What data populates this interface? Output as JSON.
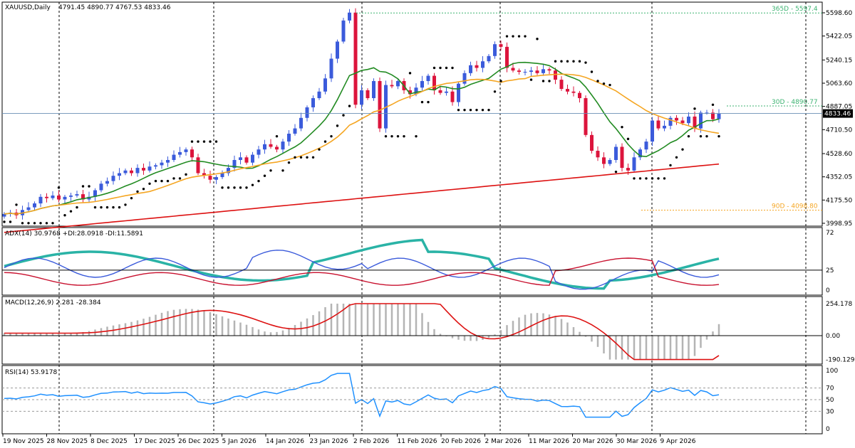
{
  "header": {
    "symbol": "XAUUSD,Daily",
    "ohlc": "4791.45 4890.77 4767.53 4833.46"
  },
  "price_panel": {
    "y_ticks": [
      "5598.60",
      "5422.05",
      "5240.15",
      "5063.60",
      "4887.05",
      "4710.50",
      "4528.60",
      "4352.05",
      "4175.50",
      "3998.95"
    ],
    "last_price": "4833.46",
    "levels": [
      {
        "label": "365D - 5597.4",
        "value": 5597.4,
        "color": "#3cb371"
      },
      {
        "label": "30D - 4890.77",
        "value": 4890.77,
        "color": "#3cb371"
      },
      {
        "label": "90D - 4098.80",
        "value": 4098.8,
        "color": "#f5a623"
      }
    ]
  },
  "adx_panel": {
    "header": "ADX(14) 30.9768 +DI:28.0918 -DI:11.5891",
    "y_ticks": [
      "72",
      "25",
      "0"
    ],
    "level": 25
  },
  "macd_panel": {
    "header": "MACD(12,26,9) 2.281 -28.384",
    "y_ticks": [
      "254.178",
      "0.00",
      "-190.129"
    ]
  },
  "rsi_panel": {
    "header": "RSI(14) 53.9178",
    "y_ticks": [
      "100",
      "70",
      "50",
      "30",
      "0"
    ]
  },
  "x_axis": {
    "labels": [
      "19 Nov 2025",
      "28 Nov 2025",
      "8 Dec 2025",
      "17 Dec 2025",
      "26 Dec 2025",
      "5 Jan 2026",
      "14 Jan 2026",
      "23 Jan 2026",
      "2 Feb 2026",
      "11 Feb 2026",
      "20 Feb 2026",
      "2 Mar 2026",
      "11 Mar 2026",
      "20 Mar 2026",
      "30 Mar 2026",
      "9 Apr 2026"
    ]
  },
  "colors": {
    "bull": "#3b5bdb",
    "bear": "#dc143c",
    "ma_fast": "#228b22",
    "ma_mid": "#f5a623",
    "ma_slow": "#dd1111",
    "adx": "#2ab3a6",
    "plus_di": "#3b5bdb",
    "minus_di": "#c8102e",
    "macd_hist": "#b4b4b4",
    "macd_signal": "#dd1111",
    "rsi": "#1e90ff"
  },
  "chart_data": {
    "type": "line",
    "title": "XAUUSD,Daily",
    "close": [
      4070,
      4080,
      4060,
      4100,
      4120,
      4150,
      4200,
      4190,
      4210,
      4180,
      4200,
      4210,
      4220,
      4180,
      4200,
      4250,
      4300,
      4320,
      4360,
      4380,
      4400,
      4380,
      4420,
      4400,
      4430,
      4440,
      4460,
      4480,
      4520,
      4540,
      4560,
      4500,
      4380,
      4360,
      4330,
      4350,
      4380,
      4420,
      4480,
      4500,
      4460,
      4520,
      4560,
      4600,
      4580,
      4560,
      4620,
      4680,
      4720,
      4800,
      4880,
      4950,
      5000,
      5100,
      5250,
      5380,
      5540,
      5600,
      4900,
      5010,
      4950,
      5080,
      4720,
      5050,
      5040,
      5080,
      5010,
      4980,
      5030,
      5080,
      5120,
      5010,
      4990,
      5000,
      4920,
      5060,
      5140,
      5200,
      5180,
      5230,
      5270,
      5360,
      5340,
      5180,
      5160,
      5150,
      5150,
      5160,
      5140,
      5170,
      5160,
      5090,
      5020,
      5000,
      4990,
      4950,
      4670,
      4550,
      4500,
      4450,
      4480,
      4580,
      4420,
      4400,
      4500,
      4560,
      4620,
      4780,
      4720,
      4740,
      4800,
      4780,
      4760,
      4810,
      4720,
      4840,
      4840,
      4790,
      4833
    ]
  }
}
